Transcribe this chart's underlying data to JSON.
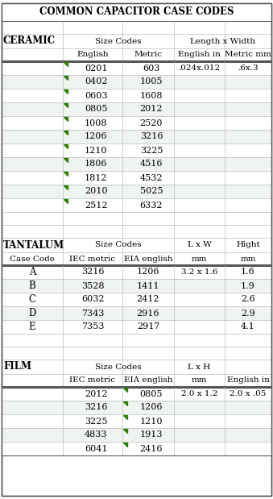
{
  "title": "COMMON CAPACITOR CASE CODES",
  "background": "#ffffff",
  "ceramic_label": "CERAMIC",
  "ceramic_sh1": [
    "Size Codes",
    "Length x Width"
  ],
  "ceramic_sh2": [
    "English",
    "Metric",
    "English in",
    "Metric mm"
  ],
  "ceramic_rows": [
    [
      "0201",
      "603",
      ".024x.012",
      ".6x.3"
    ],
    [
      "0402",
      "1005",
      "",
      ""
    ],
    [
      "0603",
      "1608",
      "",
      ""
    ],
    [
      "0805",
      "2012",
      "",
      ""
    ],
    [
      "1008",
      "2520",
      "",
      ""
    ],
    [
      "1206",
      "3216",
      "",
      ""
    ],
    [
      "1210",
      "3225",
      "",
      ""
    ],
    [
      "1806",
      "4516",
      "",
      ""
    ],
    [
      "1812",
      "4532",
      "",
      ""
    ],
    [
      "2010",
      "5025",
      "",
      ""
    ],
    [
      "2512",
      "6332",
      "",
      ""
    ]
  ],
  "tantalum_label": "TANTALUM",
  "tantalum_sh1": [
    "Size Codes",
    "L x W",
    "Hight"
  ],
  "tantalum_sh2": [
    "Case Code",
    "IEC metric",
    "EIA english",
    "mm",
    "mm"
  ],
  "tantalum_rows": [
    [
      "A",
      "3216",
      "1206",
      "3.2 x 1.6",
      "1.6"
    ],
    [
      "B",
      "3528",
      "1411",
      "",
      "1.9"
    ],
    [
      "C",
      "6032",
      "2412",
      "",
      "2.6"
    ],
    [
      "D",
      "7343",
      "2916",
      "",
      "2.9"
    ],
    [
      "E",
      "7353",
      "2917",
      "",
      "4.1"
    ]
  ],
  "film_label": "FILM",
  "film_sh1": [
    "Size Codes",
    "L x H"
  ],
  "film_sh2": [
    "IEC metric",
    "EIA english",
    "mm",
    "English in"
  ],
  "film_rows": [
    [
      "2012",
      "0805",
      "2.0 x 1.2",
      "2.0 x .05"
    ],
    [
      "3216",
      "1206",
      "",
      ""
    ],
    [
      "3225",
      "1210",
      "",
      ""
    ],
    [
      "4833",
      "1913",
      "",
      ""
    ],
    [
      "6041",
      "2416",
      "",
      ""
    ]
  ],
  "green": "#2a8000",
  "sep_color": "#555555",
  "line_color": "#bbbbbb",
  "border_color": "#555555"
}
